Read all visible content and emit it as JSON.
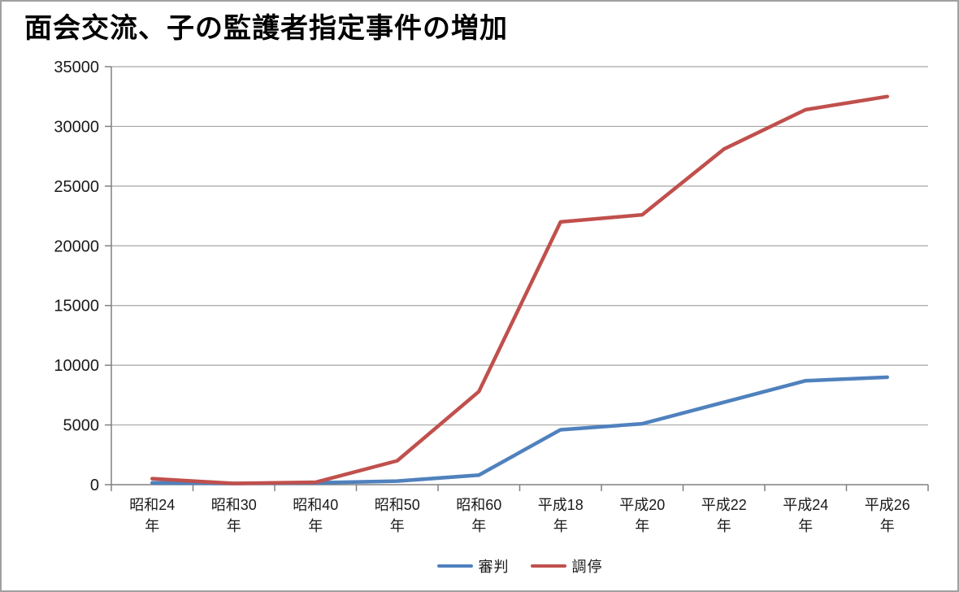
{
  "title": "面会交流、子の監護者指定事件の増加",
  "colors": {
    "series_blue": "#4F81BD",
    "series_red": "#C0504D",
    "gridline": "#A6A6A6",
    "axis": "#808080",
    "frame_border": "#A0A0A0",
    "text": "#1a1a1a"
  },
  "chart_data": {
    "type": "line",
    "title": "面会交流、子の監護者指定事件の増加",
    "categories": [
      "昭和24",
      "昭和30",
      "昭和40",
      "昭和50",
      "昭和60",
      "平成18",
      "平成20",
      "平成22",
      "平成24",
      "平成26"
    ],
    "category_suffix": "年",
    "series": [
      {
        "name": "審判",
        "color": "#4F81BD",
        "values": [
          150,
          100,
          150,
          300,
          800,
          4600,
          5100,
          6900,
          8700,
          9000
        ]
      },
      {
        "name": "調停",
        "color": "#C0504D",
        "values": [
          500,
          100,
          200,
          2000,
          7800,
          22000,
          22600,
          28100,
          31400,
          32500
        ]
      }
    ],
    "xlabel": "",
    "ylabel": "",
    "ylim": [
      0,
      35000
    ],
    "ytick_step": 5000,
    "ytick_labels": [
      "0",
      "5000",
      "10000",
      "15000",
      "20000",
      "25000",
      "30000",
      "35000"
    ],
    "grid": true,
    "legend_position": "bottom"
  }
}
